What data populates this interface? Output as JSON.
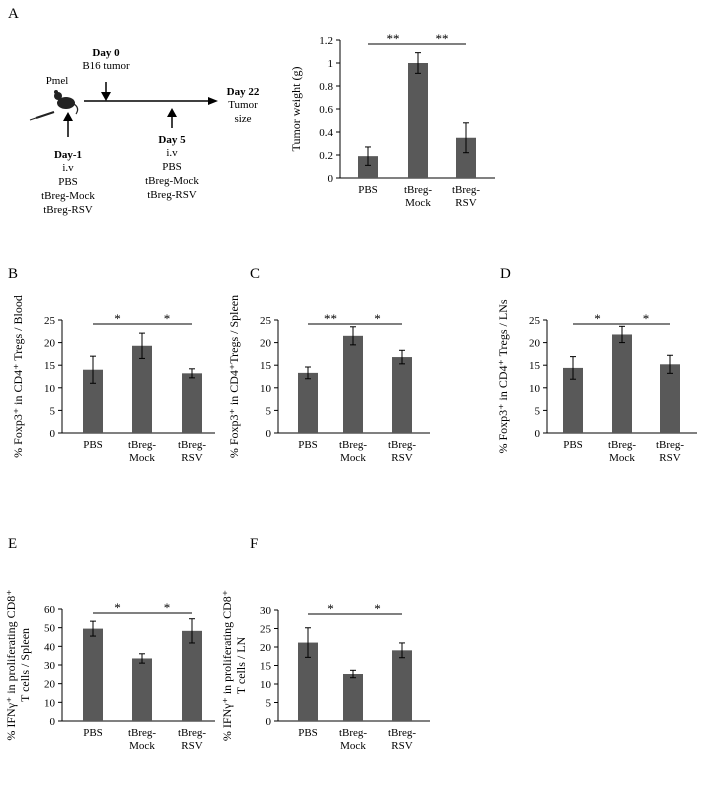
{
  "diagram": {
    "panel": "A",
    "mouse_label": "Pmel",
    "events": [
      {
        "title": "Day-1",
        "lines": [
          "i.v",
          "PBS",
          "tBreg-Mock",
          "tBreg-RSV"
        ]
      },
      {
        "title": "Day 0",
        "lines": [
          "B16 tumor"
        ]
      },
      {
        "title": "Day 5",
        "lines": [
          "i.v",
          "PBS",
          "tBreg-Mock",
          "tBreg-RSV"
        ]
      },
      {
        "title": "Day 22",
        "lines": [
          "Tumor",
          "size"
        ]
      }
    ]
  },
  "chart_data": [
    {
      "type": "bar",
      "ylabel": "Tumor weight (g)",
      "categories": [
        "PBS",
        "tBreg-\nMock",
        "tBreg-\nRSV"
      ],
      "values": [
        0.19,
        1.0,
        0.35
      ],
      "errors": [
        0.08,
        0.09,
        0.13
      ],
      "color": "#595959",
      "ylim": [
        0,
        1.2
      ],
      "yticks": [
        0,
        0.2,
        0.4,
        0.6,
        0.8,
        1,
        1.2
      ],
      "significance": [
        "**",
        "**"
      ]
    },
    {
      "type": "bar",
      "panel": "B",
      "ylabel": "% Foxp3⁺ in CD4⁺ Tregs / Blood",
      "categories": [
        "PBS",
        "tBreg-\nMock",
        "tBreg-\nRSV"
      ],
      "values": [
        14,
        19.3,
        13.2
      ],
      "errors": [
        3,
        2.8,
        1
      ],
      "color": "#595959",
      "ylim": [
        0,
        25
      ],
      "yticks": [
        0,
        5,
        10,
        15,
        20,
        25
      ],
      "significance": [
        "*",
        "*"
      ]
    },
    {
      "type": "bar",
      "panel": "C",
      "ylabel": "% Foxp3⁺ in CD4⁺Tregs / Spleen",
      "categories": [
        "PBS",
        "tBreg-\nMock",
        "tBreg-\nRSV"
      ],
      "values": [
        13.3,
        21.5,
        16.8
      ],
      "errors": [
        1.3,
        2,
        1.5
      ],
      "color": "#595959",
      "ylim": [
        0,
        25
      ],
      "yticks": [
        0,
        5,
        10,
        15,
        20,
        25
      ],
      "significance": [
        "**",
        "*"
      ]
    },
    {
      "type": "bar",
      "panel": "D",
      "ylabel": "% Foxp3⁺ in CD4⁺ Tregs / LNs",
      "categories": [
        "PBS",
        "tBreg-\nMock",
        "tBreg-\nRSV"
      ],
      "values": [
        14.4,
        21.8,
        15.2
      ],
      "errors": [
        2.5,
        1.8,
        2
      ],
      "color": "#595959",
      "ylim": [
        0,
        25
      ],
      "yticks": [
        0,
        5,
        10,
        15,
        20,
        25
      ],
      "significance": [
        "*",
        "*"
      ]
    },
    {
      "type": "bar",
      "panel": "E",
      "ylabel": "% IFNγ⁺ in proliferating CD8⁺\nT cells / Spleen",
      "categories": [
        "PBS",
        "tBreg-\nMock",
        "tBreg-\nRSV"
      ],
      "values": [
        49.5,
        33.5,
        48.3
      ],
      "errors": [
        4,
        2.5,
        6.5
      ],
      "color": "#595959",
      "ylim": [
        0,
        60
      ],
      "yticks": [
        0,
        10,
        20,
        30,
        40,
        50,
        60
      ],
      "significance": [
        "*",
        "*"
      ]
    },
    {
      "type": "bar",
      "panel": "F",
      "ylabel": "% IFNγ⁺ in proliferating CD8⁺\nT cells / LN",
      "categories": [
        "PBS",
        "tBreg-\nMock",
        "tBreg-\nRSV"
      ],
      "values": [
        21.2,
        12.7,
        19.1
      ],
      "errors": [
        4,
        1,
        2
      ],
      "color": "#595959",
      "ylim": [
        0,
        30
      ],
      "yticks": [
        0,
        5,
        10,
        15,
        20,
        25,
        30
      ],
      "significance": [
        "*",
        "*"
      ]
    }
  ]
}
